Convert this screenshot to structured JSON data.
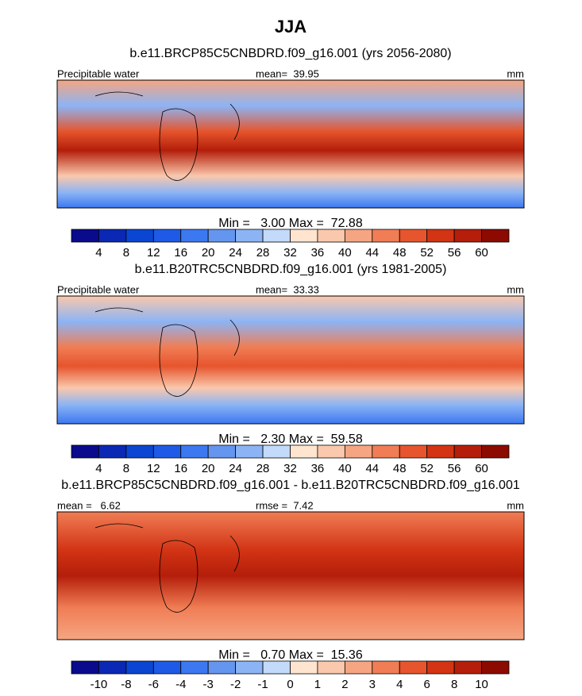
{
  "title": "JJA",
  "colorbar_colors": [
    "#0a0a8c",
    "#0a28b4",
    "#0a46d2",
    "#1e5ae6",
    "#3c78f0",
    "#6496f0",
    "#8cb4f5",
    "#c3dafa",
    "#ffe4d0",
    "#fac8ad",
    "#f5a582",
    "#f07d55",
    "#e6552d",
    "#d23414",
    "#b41e0a",
    "#8c0a00"
  ],
  "panels": [
    {
      "title": "b.e11.BRCP85C5CNBDRD.f09_g16.001 (yrs 2056-2080)",
      "left": "Precipitable water",
      "center": "mean=  39.95",
      "right": "mm",
      "stats": "Min =   3.00 Max =  72.88",
      "labels": [
        "4",
        "8",
        "12",
        "16",
        "20",
        "24",
        "28",
        "32",
        "36",
        "40",
        "44",
        "48",
        "52",
        "56",
        "60"
      ]
    },
    {
      "title": "b.e11.B20TRC5CNBDRD.f09_g16.001 (yrs 1981-2005)",
      "left": "Precipitable water",
      "center": "mean=  33.33",
      "right": "mm",
      "stats": "Min =   2.30 Max =  59.58",
      "labels": [
        "4",
        "8",
        "12",
        "16",
        "20",
        "24",
        "28",
        "32",
        "36",
        "40",
        "44",
        "48",
        "52",
        "56",
        "60"
      ]
    },
    {
      "title": "b.e11.BRCP85C5CNBDRD.f09_g16.001 - b.e11.B20TRC5CNBDRD.f09_g16.001",
      "left": "mean =   6.62",
      "center": "rmse =  7.42",
      "right": "mm",
      "stats": "Min =   0.70 Max =  15.36",
      "labels": [
        "-10",
        "-8",
        "-6",
        "-4",
        "-3",
        "-2",
        "-1",
        "0",
        "1",
        "2",
        "3",
        "4",
        "6",
        "8",
        "10"
      ]
    }
  ]
}
